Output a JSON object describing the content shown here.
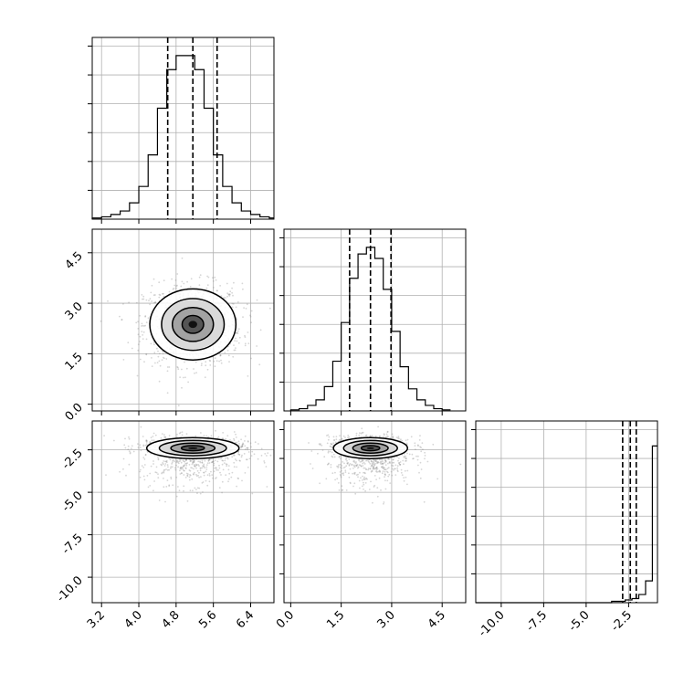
{
  "chart_data": {
    "type": "corner",
    "title": "",
    "parameters": [
      {
        "label": "",
        "range": [
          3.0,
          6.9
        ],
        "ticks": [
          "3.2",
          "4.0",
          "4.8",
          "5.6",
          "6.4"
        ],
        "quantiles": [
          4.62,
          5.16,
          5.68
        ]
      },
      {
        "label": "",
        "range": [
          -0.2,
          5.2
        ],
        "ticks": [
          "0.0",
          "1.5",
          "3.0",
          "4.5"
        ],
        "quantiles": [
          1.75,
          2.37,
          2.98
        ]
      },
      {
        "label": "",
        "range": [
          -11.5,
          -0.8
        ],
        "ticks": [
          "-10.0",
          "-7.5",
          "-5.0",
          "-2.5"
        ],
        "quantiles": [
          -2.85,
          -2.4,
          -2.05
        ]
      }
    ],
    "histograms": [
      {
        "param": 0,
        "bin_start": 3.0,
        "bin_width": 0.2,
        "counts": [
          1,
          2,
          4,
          7,
          14,
          28,
          55,
          95,
          128,
          140,
          140,
          128,
          95,
          55,
          28,
          14,
          7,
          4,
          2,
          1
        ]
      },
      {
        "param": 1,
        "bin_start": 0.0,
        "bin_width": 0.25,
        "counts": [
          1,
          2,
          5,
          10,
          22,
          45,
          80,
          120,
          142,
          148,
          138,
          110,
          72,
          40,
          20,
          10,
          5,
          2,
          1
        ]
      },
      {
        "param": 2,
        "bin_start": -11.5,
        "bin_width": 0.4,
        "counts": [
          0,
          0,
          0,
          0,
          0,
          0,
          0,
          0,
          0,
          0,
          0,
          0,
          0,
          0,
          0,
          0,
          0,
          0,
          0,
          0,
          1,
          1,
          2,
          3,
          6,
          16,
          115,
          120,
          20
        ]
      }
    ],
    "density_2d": [
      {
        "x_param": 0,
        "y_param": 1,
        "center": [
          5.16,
          2.37
        ],
        "sigma": [
          0.42,
          0.48
        ]
      },
      {
        "x_param": 0,
        "y_param": 2,
        "center": [
          5.16,
          -2.4
        ],
        "sigma": [
          0.45,
          0.28
        ]
      },
      {
        "x_param": 1,
        "y_param": 2,
        "center": [
          2.37,
          -2.4
        ],
        "sigma": [
          0.5,
          0.28
        ]
      }
    ],
    "grid": true
  }
}
